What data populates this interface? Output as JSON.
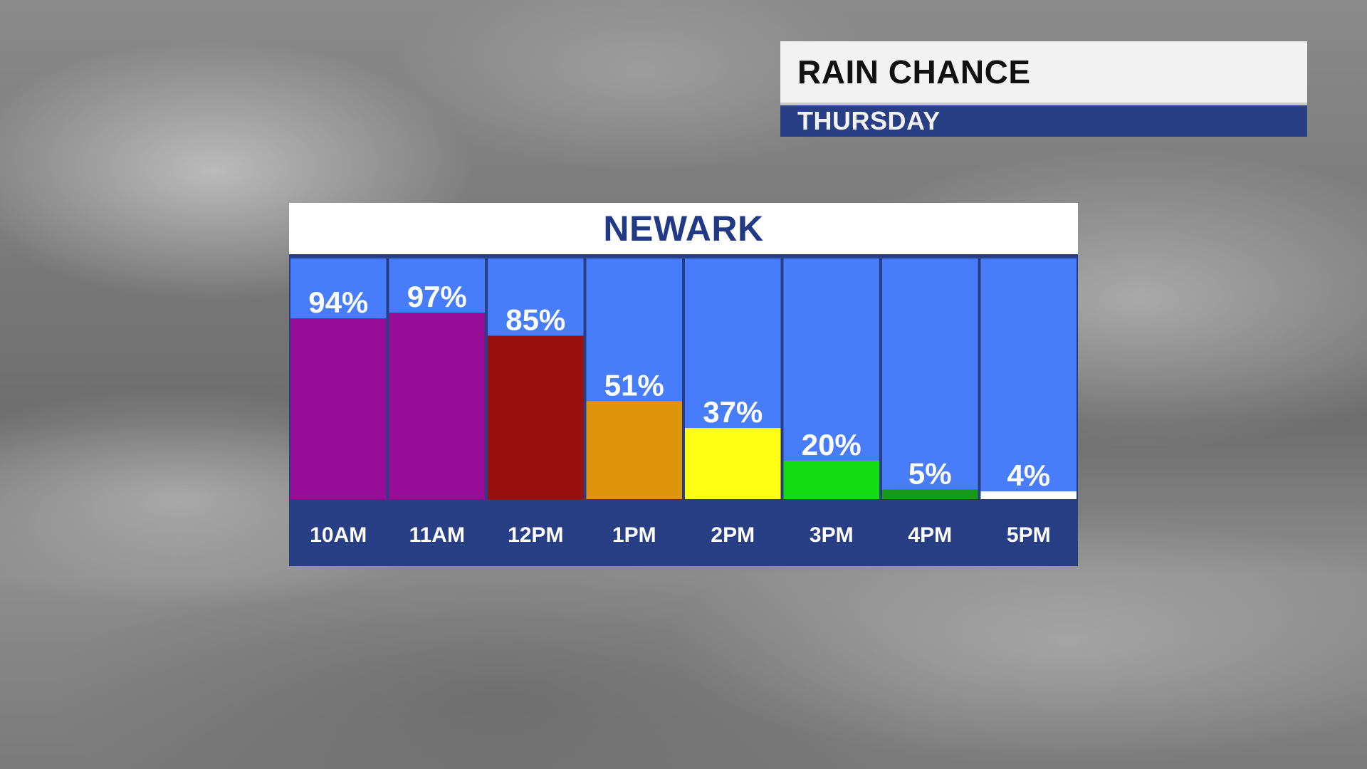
{
  "header": {
    "title": "RAIN CHANCE",
    "subtitle": "THURSDAY"
  },
  "chart_data": {
    "type": "bar",
    "title": "NEWARK",
    "categories": [
      "10AM",
      "11AM",
      "12PM",
      "1PM",
      "2PM",
      "3PM",
      "4PM",
      "5PM"
    ],
    "values": [
      94,
      97,
      85,
      51,
      37,
      20,
      5,
      4
    ],
    "value_labels": [
      "94%",
      "97%",
      "85%",
      "51%",
      "37%",
      "20%",
      "5%",
      "4%"
    ],
    "unit": "%",
    "ylim": [
      0,
      100
    ],
    "bar_colors": [
      "#970d97",
      "#970d97",
      "#9a0e0e",
      "#df940e",
      "#ffff12",
      "#12dc12",
      "#179a17",
      "#ffffff"
    ],
    "column_background": "#477cfb",
    "label_band_color": "#283f86",
    "grid": false,
    "legend": "none"
  }
}
